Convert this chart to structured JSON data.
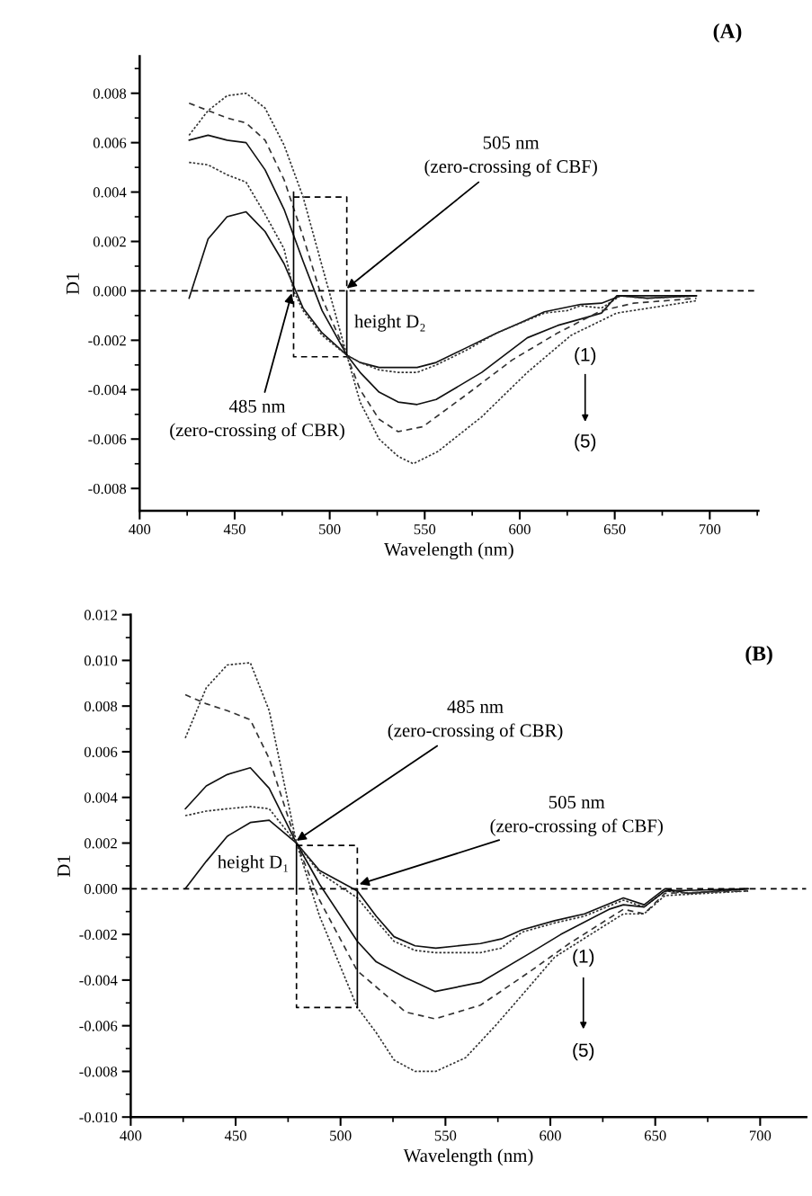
{
  "chart_data": [
    {
      "type": "line",
      "title": "(A)",
      "xlabel": "Wavelength (nm)",
      "ylabel": "D1",
      "xlim": [
        400,
        725.6
      ],
      "ylim": [
        -0.0089,
        0.0095
      ],
      "xticks": [
        400,
        {
          "value": 425,
          "label": null
        },
        450,
        {
          "value": 475,
          "label": null
        },
        500,
        {
          "value": 525,
          "label": null
        },
        550,
        {
          "value": 575,
          "label": null
        },
        600,
        {
          "value": 625,
          "label": null
        },
        650,
        {
          "value": 675,
          "label": null
        },
        700,
        {
          "value": 725,
          "label": null
        }
      ],
      "yticks": [
        {
          "value": -0.008,
          "label": "-0.008"
        },
        {
          "value": -0.007,
          "label": null
        },
        {
          "value": -0.006,
          "label": "-0.006"
        },
        {
          "value": -0.005,
          "label": null
        },
        {
          "value": -0.004,
          "label": "-0.004"
        },
        {
          "value": -0.003,
          "label": null
        },
        {
          "value": -0.002,
          "label": "-0.002"
        },
        {
          "value": -0.001,
          "label": null
        },
        {
          "value": 0,
          "label": "0.000"
        },
        {
          "value": 0.001,
          "label": null
        },
        {
          "value": 0.002,
          "label": "0.002"
        },
        {
          "value": 0.003,
          "label": null
        },
        {
          "value": 0.004,
          "label": "0.004"
        },
        {
          "value": 0.005,
          "label": null
        },
        {
          "value": 0.006,
          "label": "0.006"
        },
        {
          "value": 0.007,
          "label": null
        },
        {
          "value": 0.008,
          "label": "0.008"
        },
        {
          "value": 0.009,
          "label": null
        }
      ],
      "ref_lines": [
        {
          "axis": "y",
          "value": 0,
          "color": "#000000",
          "line_style": "dashed"
        }
      ],
      "series": [
        {
          "color": "#111111",
          "line_style": "solid",
          "x": [
            426,
            436,
            446,
            456,
            466,
            476,
            486,
            496,
            509,
            516,
            526,
            536,
            546,
            556,
            572,
            588,
            600,
            613,
            632,
            643,
            653,
            667,
            693
          ],
          "values": [
            -0.0003,
            0.0021,
            0.003,
            0.0032,
            0.0024,
            0.0011,
            -0.0007,
            -0.0017,
            -0.0026,
            -0.0029,
            -0.0031,
            -0.0031,
            -0.0031,
            -0.0029,
            -0.0023,
            -0.0017,
            -0.0013,
            -0.00085,
            -0.00055,
            -0.0005,
            -0.0002,
            -0.0003,
            -0.0002
          ]
        },
        {
          "color": "#333333",
          "line_style": "dotted",
          "x": [
            426,
            436,
            446,
            456,
            466,
            476,
            481,
            486,
            496,
            509,
            516,
            526,
            536,
            546,
            556,
            572,
            588,
            613,
            625,
            632,
            643,
            653,
            667,
            693
          ],
          "values": [
            0.0052,
            0.0051,
            0.0047,
            0.0044,
            0.0031,
            0.0017,
            0.0,
            -0.0008,
            -0.0018,
            -0.0026,
            -0.0029,
            -0.0032,
            -0.0033,
            -0.0033,
            -0.003,
            -0.0024,
            -0.0017,
            -0.0009,
            -0.0008,
            -0.0006,
            -0.0007,
            -0.0002,
            -0.0003,
            -0.0002
          ]
        },
        {
          "color": "#111111",
          "line_style": "solid",
          "x": [
            426,
            436,
            446,
            456,
            466,
            476,
            486,
            496,
            509,
            516,
            526,
            536,
            546,
            556,
            580,
            604,
            620,
            634,
            643,
            651,
            693
          ],
          "values": [
            0.0061,
            0.0063,
            0.0061,
            0.006,
            0.0049,
            0.0033,
            0.0012,
            -0.0008,
            -0.0026,
            -0.0033,
            -0.0041,
            -0.0045,
            -0.0046,
            -0.0044,
            -0.0033,
            -0.0019,
            -0.0014,
            -0.0011,
            -0.0009,
            -0.0002,
            -0.0002
          ]
        },
        {
          "color": "#333333",
          "line_style": "dashed",
          "x": [
            426,
            436,
            446,
            456,
            466,
            476,
            486,
            496,
            509,
            516,
            526,
            536,
            549,
            572,
            596,
            620,
            643,
            660,
            693
          ],
          "values": [
            0.0076,
            0.0073,
            0.007,
            0.0068,
            0.0061,
            0.0045,
            0.0022,
            -0.0003,
            -0.0026,
            -0.004,
            -0.0052,
            -0.0057,
            -0.0055,
            -0.0042,
            -0.0028,
            -0.0017,
            -0.0008,
            -0.0005,
            -0.0003
          ]
        },
        {
          "color": "#333333",
          "line_style": "dotted",
          "x": [
            426,
            436,
            446,
            456,
            466,
            476,
            486,
            496,
            509,
            516,
            526,
            536,
            544,
            557,
            580,
            604,
            627,
            651,
            693
          ],
          "values": [
            0.0063,
            0.0073,
            0.0079,
            0.008,
            0.0074,
            0.0059,
            0.0038,
            0.001,
            -0.0026,
            -0.0045,
            -0.006,
            -0.0067,
            -0.007,
            -0.0065,
            -0.0051,
            -0.0033,
            -0.0018,
            -0.0009,
            -0.0004
          ]
        },
        {
          "color": "#000000",
          "line_style": "dashed",
          "x": [
            481,
            509,
            509
          ],
          "values": [
            0.0038,
            0.0038,
            0.0
          ]
        },
        {
          "color": "#000000",
          "line_style": "dashed",
          "x": [
            481,
            481,
            509
          ],
          "values": [
            0.0,
            -0.00267,
            -0.00267
          ]
        },
        {
          "color": "#000000",
          "line_style": "solid",
          "x": [
            481,
            481
          ],
          "values": [
            0.0,
            0.004
          ]
        },
        {
          "color": "#000000",
          "line_style": "solid",
          "x": [
            509,
            509
          ],
          "values": [
            -0.0026,
            0.0
          ]
        }
      ],
      "annotations": [
        {
          "text": "505 nm\n(zero-crossing of CBF)",
          "x": 509,
          "y": 0.0001
        },
        {
          "text": "485 nm\n(zero-crossing of CBR)",
          "x": 480,
          "y": -0.0001
        },
        {
          "text": "height D₂",
          "x": 509,
          "y": -0.0013
        },
        "(1)",
        "(5)"
      ]
    },
    {
      "type": "line",
      "title": "(B)",
      "xlabel": "Wavelength (nm)",
      "ylabel": "D1",
      "xlim": [
        400,
        722
      ],
      "ylim": [
        -0.01,
        0.012
      ],
      "xticks": [
        400,
        {
          "value": 425,
          "label": null
        },
        450,
        {
          "value": 475,
          "label": null
        },
        500,
        {
          "value": 525,
          "label": null
        },
        550,
        {
          "value": 575,
          "label": null
        },
        600,
        {
          "value": 625,
          "label": null
        },
        650,
        {
          "value": 675,
          "label": null
        },
        700
      ],
      "yticks": [
        {
          "value": -0.01,
          "label": "-0.010"
        },
        {
          "value": -0.009,
          "label": null
        },
        {
          "value": -0.008,
          "label": "-0.008"
        },
        {
          "value": -0.007,
          "label": null
        },
        {
          "value": -0.006,
          "label": "-0.006"
        },
        {
          "value": -0.005,
          "label": null
        },
        {
          "value": -0.004,
          "label": "-0.004"
        },
        {
          "value": -0.003,
          "label": null
        },
        {
          "value": -0.002,
          "label": "-0.002"
        },
        {
          "value": -0.001,
          "label": null
        },
        {
          "value": 0,
          "label": "0.000"
        },
        {
          "value": 0.001,
          "label": null
        },
        {
          "value": 0.002,
          "label": "0.002"
        },
        {
          "value": 0.003,
          "label": null
        },
        {
          "value": 0.004,
          "label": "0.004"
        },
        {
          "value": 0.005,
          "label": null
        },
        {
          "value": 0.006,
          "label": "0.006"
        },
        {
          "value": 0.007,
          "label": null
        },
        {
          "value": 0.008,
          "label": "0.008"
        },
        {
          "value": 0.009,
          "label": null
        },
        {
          "value": 0.01,
          "label": "0.010"
        },
        {
          "value": 0.011,
          "label": null
        },
        {
          "value": 0.012,
          "label": "0.012"
        }
      ],
      "ref_lines": [
        {
          "axis": "y",
          "value": 0,
          "color": "#000000",
          "line_style": "dashed"
        }
      ],
      "series": [
        {
          "color": "#111111",
          "line_style": "solid",
          "x": [
            426,
            436,
            446,
            457,
            466,
            479,
            490,
            508,
            517,
            525.5,
            535.5,
            545.4,
            566.7,
            576.6,
            586.5,
            602,
            616.3,
            634.8,
            644.7,
            654.6,
            666,
            694.3
          ],
          "values": [
            0.0,
            0.0012,
            0.0023,
            0.0029,
            0.003,
            0.002,
            0.0008,
            -0.0001,
            -0.0012,
            -0.0021,
            -0.0025,
            -0.0026,
            -0.0024,
            -0.0022,
            -0.0018,
            -0.0014,
            -0.0011,
            -0.0004,
            -0.0007,
            0.0,
            -0.0002,
            0.0
          ]
        },
        {
          "color": "#333333",
          "line_style": "dotted",
          "x": [
            426,
            436,
            446,
            457,
            466,
            479,
            490,
            508,
            517,
            525.5,
            535.5,
            545.4,
            566.7,
            576.6,
            586.5,
            602,
            616.3,
            634.8,
            644.7,
            654.6,
            666,
            694.3
          ],
          "values": [
            0.0032,
            0.0034,
            0.0035,
            0.0036,
            0.0035,
            0.002,
            0.0007,
            -0.0004,
            -0.0014,
            -0.0023,
            -0.0027,
            -0.0028,
            -0.0028,
            -0.0026,
            -0.0019,
            -0.0015,
            -0.0012,
            -0.0005,
            -0.0008,
            -0.0001,
            -0.0002,
            0.0
          ]
        },
        {
          "color": "#111111",
          "line_style": "solid",
          "x": [
            426,
            436,
            446,
            457,
            466,
            479,
            490,
            508,
            517,
            531,
            545,
            566.7,
            590.7,
            605,
            628,
            634.8,
            644.7,
            654.6,
            694.3
          ],
          "values": [
            0.0035,
            0.0045,
            0.005,
            0.0053,
            0.0044,
            0.002,
            0.0002,
            -0.0023,
            -0.0032,
            -0.0039,
            -0.0045,
            -0.0041,
            -0.0028,
            -0.002,
            -0.0009,
            -0.0007,
            -0.0008,
            -0.0001,
            0.0
          ]
        },
        {
          "color": "#333333",
          "line_style": "dashed",
          "x": [
            426,
            436,
            446,
            457,
            466,
            479,
            490,
            508,
            517,
            531,
            545,
            566.7,
            590.7,
            609,
            634.8,
            644.7,
            654.6,
            694.3
          ],
          "values": [
            0.0085,
            0.0081,
            0.0078,
            0.0074,
            0.0057,
            0.002,
            -0.0005,
            -0.0036,
            -0.0043,
            -0.0054,
            -0.0057,
            -0.0051,
            -0.0036,
            -0.0024,
            -0.0009,
            -0.0011,
            -0.0002,
            -0.0001
          ]
        },
        {
          "color": "#333333",
          "line_style": "dotted",
          "x": [
            426,
            436,
            446,
            457,
            466,
            479,
            490,
            508,
            517,
            525.5,
            535.5,
            545.4,
            559.6,
            573.8,
            588,
            602,
            619.2,
            634.8,
            644.7,
            654.6,
            694.3
          ],
          "values": [
            0.0066,
            0.0088,
            0.0098,
            0.0099,
            0.0078,
            0.002,
            -0.0012,
            -0.0052,
            -0.0063,
            -0.0075,
            -0.008,
            -0.008,
            -0.0074,
            -0.006,
            -0.0045,
            -0.003,
            -0.002,
            -0.0011,
            -0.0011,
            -0.0003,
            -0.0001
          ]
        },
        {
          "color": "#000000",
          "line_style": "dashed",
          "x": [
            479,
            508,
            508
          ],
          "values": [
            0.0019,
            0.0019,
            0.0
          ]
        },
        {
          "color": "#000000",
          "line_style": "dashed",
          "x": [
            479,
            479,
            508
          ],
          "values": [
            0.0,
            -0.0052,
            -0.0052
          ]
        },
        {
          "color": "#000000",
          "line_style": "solid",
          "x": [
            479,
            479
          ],
          "values": [
            0.0,
            0.002
          ]
        },
        {
          "color": "#000000",
          "line_style": "solid",
          "x": [
            508,
            508
          ],
          "values": [
            -0.0052,
            0.0
          ]
        }
      ],
      "annotations": [
        {
          "text": "485 nm\n(zero-crossing of CBR)",
          "x": 479,
          "y": 0.0021
        },
        {
          "text": "505 nm\n(zero-crossing of CBF)",
          "x": 509,
          "y": 0.0002
        },
        {
          "text": "height D₁",
          "x": 479,
          "y": 0.0011
        },
        "(1)",
        "(5)"
      ]
    }
  ]
}
